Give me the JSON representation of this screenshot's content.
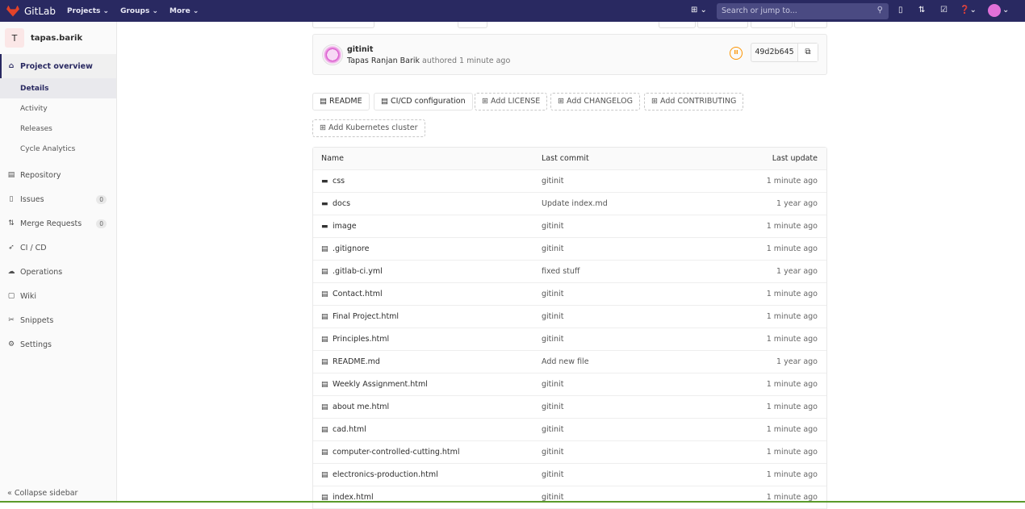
{
  "nav": {
    "brand": "GitLab",
    "links": [
      "Projects",
      "Groups",
      "More"
    ],
    "search_placeholder": "Search or jump to..."
  },
  "sidebar": {
    "project_initial": "T",
    "project_name": "tapas.barik",
    "overview": "Project overview",
    "sub": [
      "Details",
      "Activity",
      "Releases",
      "Cycle Analytics"
    ],
    "items": [
      {
        "label": "Repository",
        "icon": "repository-icon"
      },
      {
        "label": "Issues",
        "icon": "issues-icon",
        "badge": "0"
      },
      {
        "label": "Merge Requests",
        "icon": "merge-request-icon",
        "badge": "0"
      },
      {
        "label": "CI / CD",
        "icon": "rocket-icon"
      },
      {
        "label": "Operations",
        "icon": "cloud-icon"
      },
      {
        "label": "Wiki",
        "icon": "book-icon"
      },
      {
        "label": "Snippets",
        "icon": "scissors-icon"
      },
      {
        "label": "Settings",
        "icon": "gear-icon"
      }
    ],
    "collapse": "Collapse sidebar"
  },
  "commit": {
    "title": "gitinit",
    "author": "Tapas Ranjan Barik",
    "authored": "authored 1 minute ago",
    "sha": "49d2b645",
    "pipeline_status": "paused",
    "status_color": "#fc9403"
  },
  "quick": [
    "README",
    "CI/CD configuration",
    "Add LICENSE",
    "Add CHANGELOG",
    "Add CONTRIBUTING",
    "Add Kubernetes cluster"
  ],
  "table": {
    "headers": [
      "Name",
      "Last commit",
      "Last update"
    ],
    "rows": [
      {
        "type": "folder",
        "name": "css",
        "commit": "gitinit",
        "update": "1 minute ago"
      },
      {
        "type": "folder",
        "name": "docs",
        "commit": "Update index.md",
        "update": "1 year ago"
      },
      {
        "type": "folder",
        "name": "image",
        "commit": "gitinit",
        "update": "1 minute ago"
      },
      {
        "type": "file",
        "name": ".gitignore",
        "commit": "gitinit",
        "update": "1 minute ago"
      },
      {
        "type": "file",
        "name": ".gitlab-ci.yml",
        "commit": "fixed stuff",
        "update": "1 year ago"
      },
      {
        "type": "file",
        "name": "Contact.html",
        "commit": "gitinit",
        "update": "1 minute ago"
      },
      {
        "type": "file",
        "name": "Final Project.html",
        "commit": "gitinit",
        "update": "1 minute ago"
      },
      {
        "type": "file",
        "name": "Principles.html",
        "commit": "gitinit",
        "update": "1 minute ago"
      },
      {
        "type": "file",
        "name": "README.md",
        "commit": "Add new file",
        "update": "1 year ago"
      },
      {
        "type": "file",
        "name": "Weekly Assignment.html",
        "commit": "gitinit",
        "update": "1 minute ago"
      },
      {
        "type": "file",
        "name": "about me.html",
        "commit": "gitinit",
        "update": "1 minute ago"
      },
      {
        "type": "file",
        "name": "cad.html",
        "commit": "gitinit",
        "update": "1 minute ago"
      },
      {
        "type": "file",
        "name": "computer-controlled-cutting.html",
        "commit": "gitinit",
        "update": "1 minute ago"
      },
      {
        "type": "file",
        "name": "electronics-production.html",
        "commit": "gitinit",
        "update": "1 minute ago"
      },
      {
        "type": "file",
        "name": "index.html",
        "commit": "gitinit",
        "update": "1 minute ago"
      }
    ]
  }
}
